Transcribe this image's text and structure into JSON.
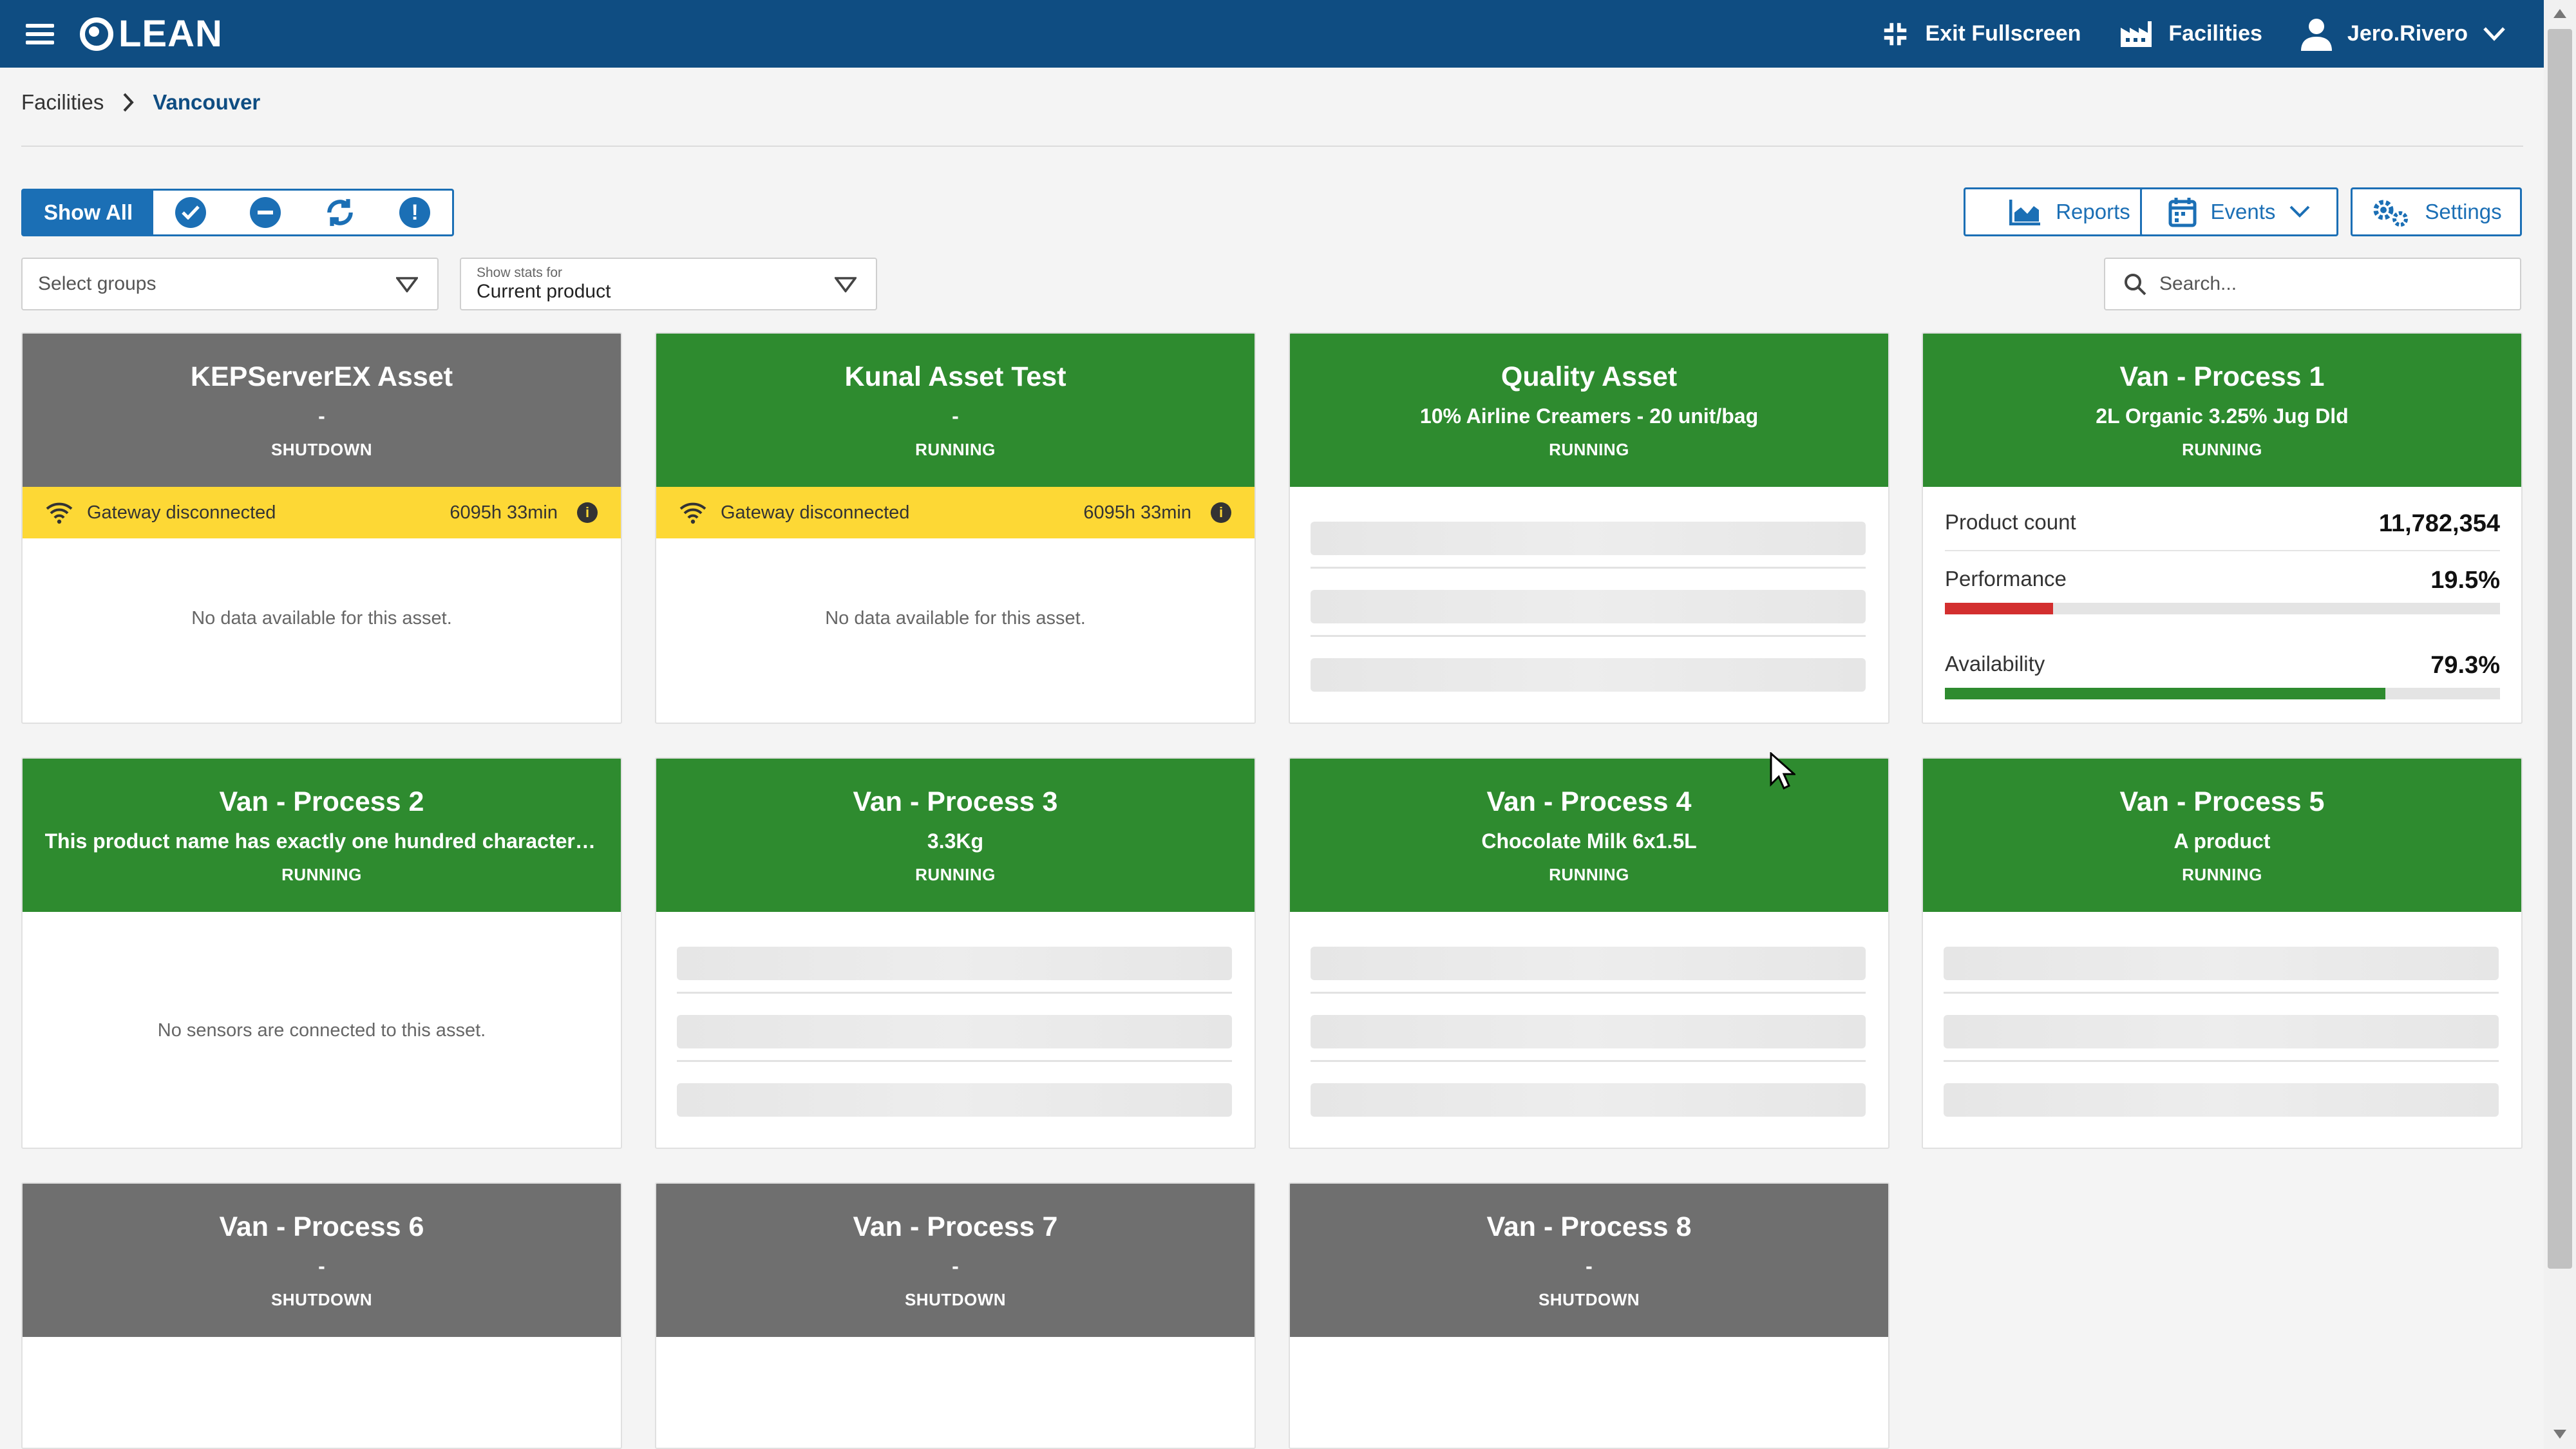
{
  "header": {
    "app_name": "LEAN",
    "actions": {
      "exit_fullscreen": "Exit Fullscreen",
      "facilities": "Facilities",
      "user": "Jero.Rivero"
    }
  },
  "breadcrumb": {
    "root": "Facilities",
    "separator": ">",
    "current": "Vancouver"
  },
  "filters": {
    "show_all": "Show All"
  },
  "toolbar": {
    "reports": "Reports",
    "events": "Events",
    "settings": "Settings"
  },
  "select_groups": {
    "placeholder": "Select groups"
  },
  "stats_select": {
    "caption": "Show stats for",
    "value": "Current product"
  },
  "search": {
    "placeholder": "Search..."
  },
  "colors": {
    "running": "#2e8b2f",
    "shutdown": "#6f6f6f",
    "warning": "#fdd835",
    "primary": "#1b6fb5",
    "header": "#0f4d82",
    "performance_bar": "#d32f2f",
    "availability_bar": "#2e8b2f"
  },
  "assets": [
    {
      "title": "KEPServerEX Asset",
      "product": "-",
      "status": "SHUTDOWN",
      "warning": {
        "text": "Gateway disconnected",
        "time": "6095h 33min"
      },
      "message": "No data available for this asset."
    },
    {
      "title": "Kunal Asset Test",
      "product": "-",
      "status": "RUNNING",
      "warning": {
        "text": "Gateway disconnected",
        "time": "6095h 33min"
      },
      "message": "No data available for this asset."
    },
    {
      "title": "Quality Asset",
      "product": "10% Airline Creamers - 20 unit/bag",
      "status": "RUNNING"
    },
    {
      "title": "Van - Process 1",
      "product": "2L Organic 3.25% Jug Dld",
      "status": "RUNNING",
      "stats": {
        "product_count": {
          "label": "Product count",
          "value": "11,782,354"
        },
        "performance": {
          "label": "Performance",
          "value": "19.5%",
          "fraction": 0.195
        },
        "availability": {
          "label": "Availability",
          "value": "79.3%",
          "fraction": 0.793
        }
      }
    },
    {
      "title": "Van - Process 2",
      "product": "This product name has exactly one hundred characters...",
      "status": "RUNNING",
      "message": "No sensors are connected to this asset."
    },
    {
      "title": "Van - Process 3",
      "product": "3.3Kg",
      "status": "RUNNING"
    },
    {
      "title": "Van - Process 4",
      "product": "Chocolate Milk 6x1.5L",
      "status": "RUNNING"
    },
    {
      "title": "Van - Process 5",
      "product": "A product",
      "status": "RUNNING"
    },
    {
      "title": "Van - Process 6",
      "product": "-",
      "status": "SHUTDOWN"
    },
    {
      "title": "Van - Process 7",
      "product": "-",
      "status": "SHUTDOWN"
    },
    {
      "title": "Van - Process 8",
      "product": "-",
      "status": "SHUTDOWN"
    }
  ]
}
